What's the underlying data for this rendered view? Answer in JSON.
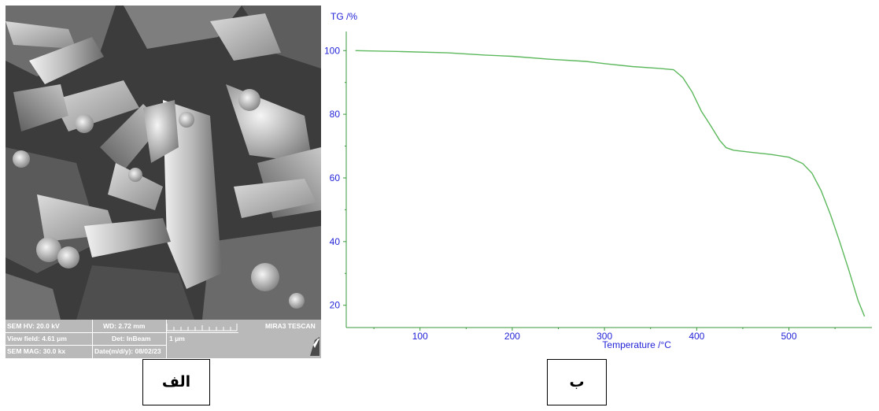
{
  "sem": {
    "hv": "SEM HV: 20.0 kV",
    "wd": "WD: 2.72 mm",
    "brand": "MIRA3 TESCAN",
    "view_field": "View field: 4.61 μm",
    "det": "Det: InBeam",
    "scale": "1 μm",
    "mag": "SEM MAG: 30.0 kx",
    "date": "Date(m/d/y): 08/02/23"
  },
  "labels": {
    "a": "الف",
    "b": "ب"
  },
  "colors": {
    "curve": "#5cb85c",
    "axis_text": "#2323d8",
    "axis": "#3a9a3a"
  },
  "chart_data": {
    "type": "line",
    "ylabel": "TG /%",
    "xlabel": "Temperature /°C",
    "xlim": [
      20,
      590
    ],
    "ylim": [
      13,
      106
    ],
    "xticks": [
      100,
      200,
      300,
      400,
      500
    ],
    "yticks": [
      20,
      40,
      60,
      80,
      100
    ],
    "grid": false,
    "series": [
      {
        "x": [
          30,
          80,
          130,
          170,
          200,
          240,
          280,
          300,
          330,
          360,
          375,
          385,
          395,
          405,
          415,
          425,
          432,
          440,
          460,
          480,
          500,
          515,
          525,
          535,
          545,
          555,
          565,
          575,
          582
        ],
        "y": [
          100,
          99.7,
          99.3,
          98.6,
          98.2,
          97.3,
          96.6,
          95.9,
          95.0,
          94.4,
          94.0,
          91.5,
          87.0,
          81.0,
          76.5,
          71.8,
          69.5,
          68.7,
          68.0,
          67.4,
          66.5,
          64.5,
          61.5,
          56.0,
          48.5,
          40.0,
          31.0,
          21.5,
          16.5
        ]
      }
    ]
  }
}
